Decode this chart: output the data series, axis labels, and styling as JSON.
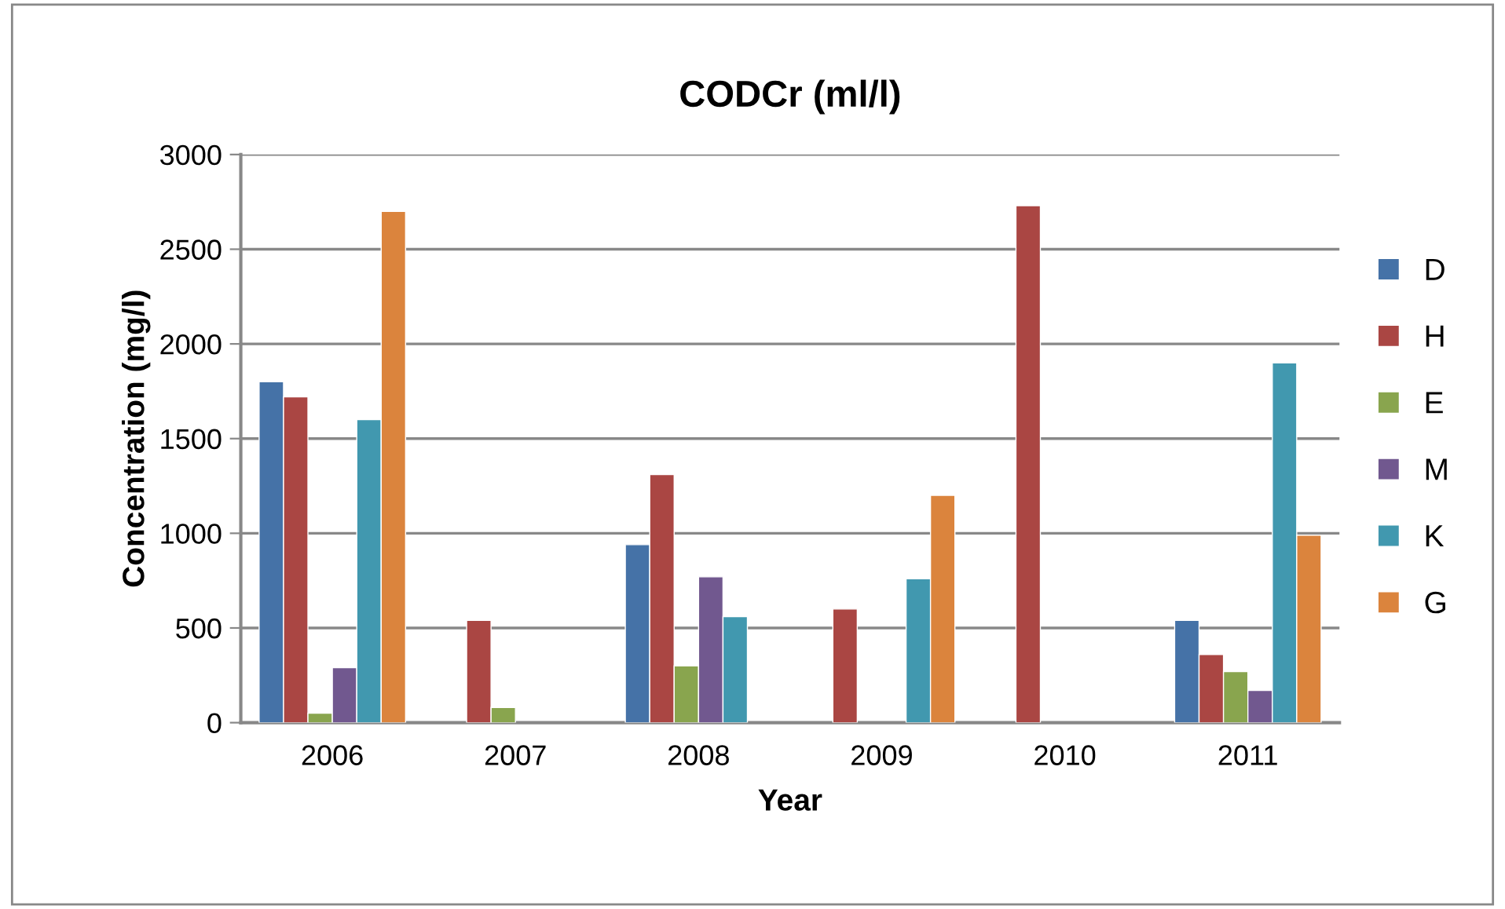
{
  "chart_data": {
    "type": "bar",
    "title": "CODCr (ml/l)",
    "xlabel": "Year",
    "ylabel": "Concentration (mg/l)",
    "categories": [
      "2006",
      "2007",
      "2008",
      "2009",
      "2010",
      "2011"
    ],
    "series": [
      {
        "name": "D",
        "color": "#4572a7",
        "values": [
          1800,
          null,
          940,
          null,
          null,
          540
        ]
      },
      {
        "name": "H",
        "color": "#aa4643",
        "values": [
          1720,
          540,
          1310,
          600,
          2730,
          360
        ]
      },
      {
        "name": "E",
        "color": "#89a54e",
        "values": [
          50,
          80,
          300,
          null,
          null,
          270
        ]
      },
      {
        "name": "M",
        "color": "#71588f",
        "values": [
          290,
          null,
          770,
          null,
          null,
          170
        ]
      },
      {
        "name": "K",
        "color": "#4198af",
        "values": [
          1600,
          null,
          560,
          760,
          null,
          1900
        ]
      },
      {
        "name": "G",
        "color": "#db843d",
        "values": [
          2700,
          null,
          null,
          1200,
          null,
          990
        ]
      }
    ],
    "ylim": [
      0,
      3000
    ],
    "yticks": [
      0,
      500,
      1000,
      1500,
      2000,
      2500,
      3000
    ],
    "grid": "y",
    "legend": "right"
  }
}
